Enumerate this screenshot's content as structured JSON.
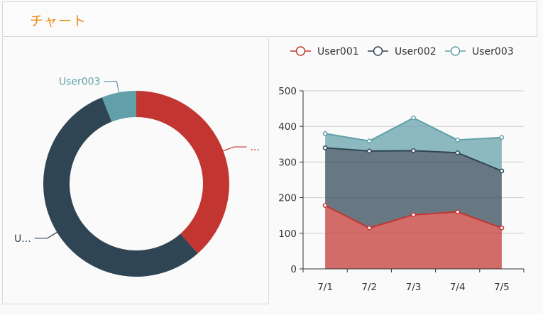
{
  "header": {
    "title": "チャート"
  },
  "colors": {
    "user001": "#c23531",
    "user002": "#2f4554",
    "user003": "#61a0a8",
    "title": "#e98a1b"
  },
  "chart_data": [
    {
      "type": "pie",
      "variant": "donut",
      "slices": [
        {
          "name": "User001",
          "label": "...",
          "value": 38.5
        },
        {
          "name": "User002",
          "label": "U...",
          "value": 55.5
        },
        {
          "name": "User003",
          "label": "User003",
          "value": 6.0
        }
      ]
    },
    {
      "type": "area",
      "stacked": true,
      "legend": [
        "User001",
        "User002",
        "User003"
      ],
      "legend_position": "top",
      "categories": [
        "7/1",
        "7/2",
        "7/3",
        "7/4",
        "7/5"
      ],
      "series": [
        {
          "name": "User001",
          "values": [
            178,
            115,
            152,
            160,
            115
          ]
        },
        {
          "name": "User002",
          "values": [
            162,
            216,
            180,
            166,
            160
          ]
        },
        {
          "name": "User003",
          "values": [
            40,
            28,
            92,
            36,
            94
          ]
        }
      ],
      "ylim": [
        0,
        500
      ],
      "yticks": [
        0,
        100,
        200,
        300,
        400,
        500
      ],
      "grid": true
    }
  ]
}
